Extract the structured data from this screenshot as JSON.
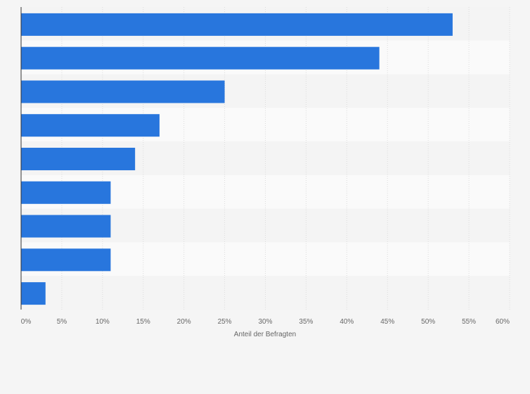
{
  "chart_data": {
    "type": "bar",
    "orientation": "horizontal",
    "categories": [
      "",
      "",
      "",
      "",
      "",
      "",
      "",
      "",
      ""
    ],
    "values": [
      53,
      44,
      25,
      17,
      14,
      11,
      11,
      11,
      3
    ],
    "xlabel": "Anteil der Befragten",
    "xlim": [
      0,
      60
    ],
    "xticks": [
      "0%",
      "5%",
      "10%",
      "15%",
      "20%",
      "25%",
      "30%",
      "35%",
      "40%",
      "45%",
      "50%",
      "55%",
      "60%"
    ],
    "grid": true,
    "bar_color": "#2876dd"
  }
}
